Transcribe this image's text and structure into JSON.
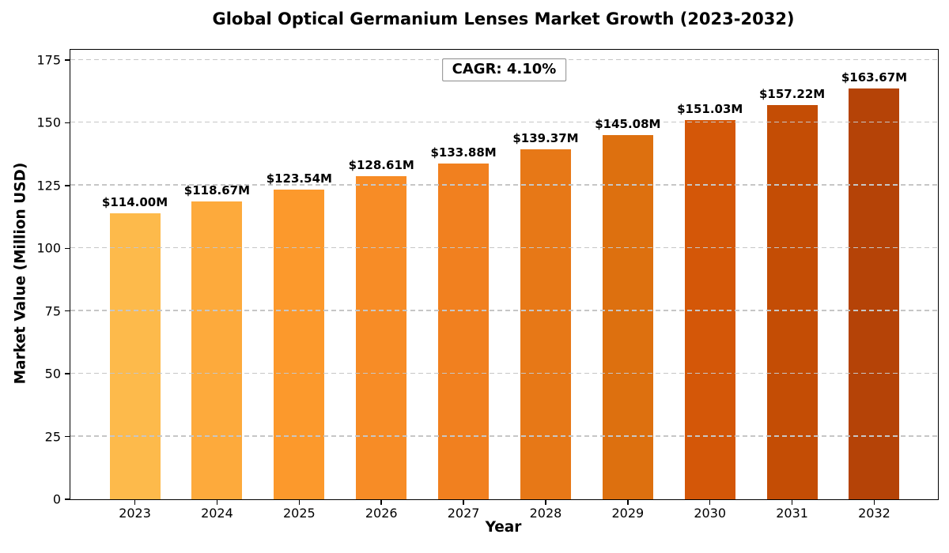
{
  "chart_data": {
    "type": "bar",
    "title": "Global Optical Germanium Lenses Market Growth (2023-2032)",
    "xlabel": "Year",
    "ylabel": "Market Value (Million USD)",
    "categories": [
      "2023",
      "2024",
      "2025",
      "2026",
      "2027",
      "2028",
      "2029",
      "2030",
      "2031",
      "2032"
    ],
    "values": [
      114.0,
      118.67,
      123.54,
      128.61,
      133.88,
      139.37,
      145.08,
      151.03,
      157.22,
      163.67
    ],
    "value_labels": [
      "$114.00M",
      "$118.67M",
      "$123.54M",
      "$128.61M",
      "$133.88M",
      "$139.37M",
      "$145.08M",
      "$151.03M",
      "$157.22M",
      "$163.67M"
    ],
    "bar_colors": [
      "#FDBA4B",
      "#FDAA3C",
      "#FC992C",
      "#F78C26",
      "#F1801F",
      "#E77817",
      "#DD700F",
      "#D45708",
      "#C44D05",
      "#B54307"
    ],
    "yticks": [
      0,
      25,
      50,
      75,
      100,
      125,
      150,
      175
    ],
    "ylim": [
      0,
      179
    ],
    "annotation": "CAGR: 4.10%",
    "grid": "horizontal-dashed",
    "grid_color": "#c6c6c6",
    "legend": "none"
  }
}
